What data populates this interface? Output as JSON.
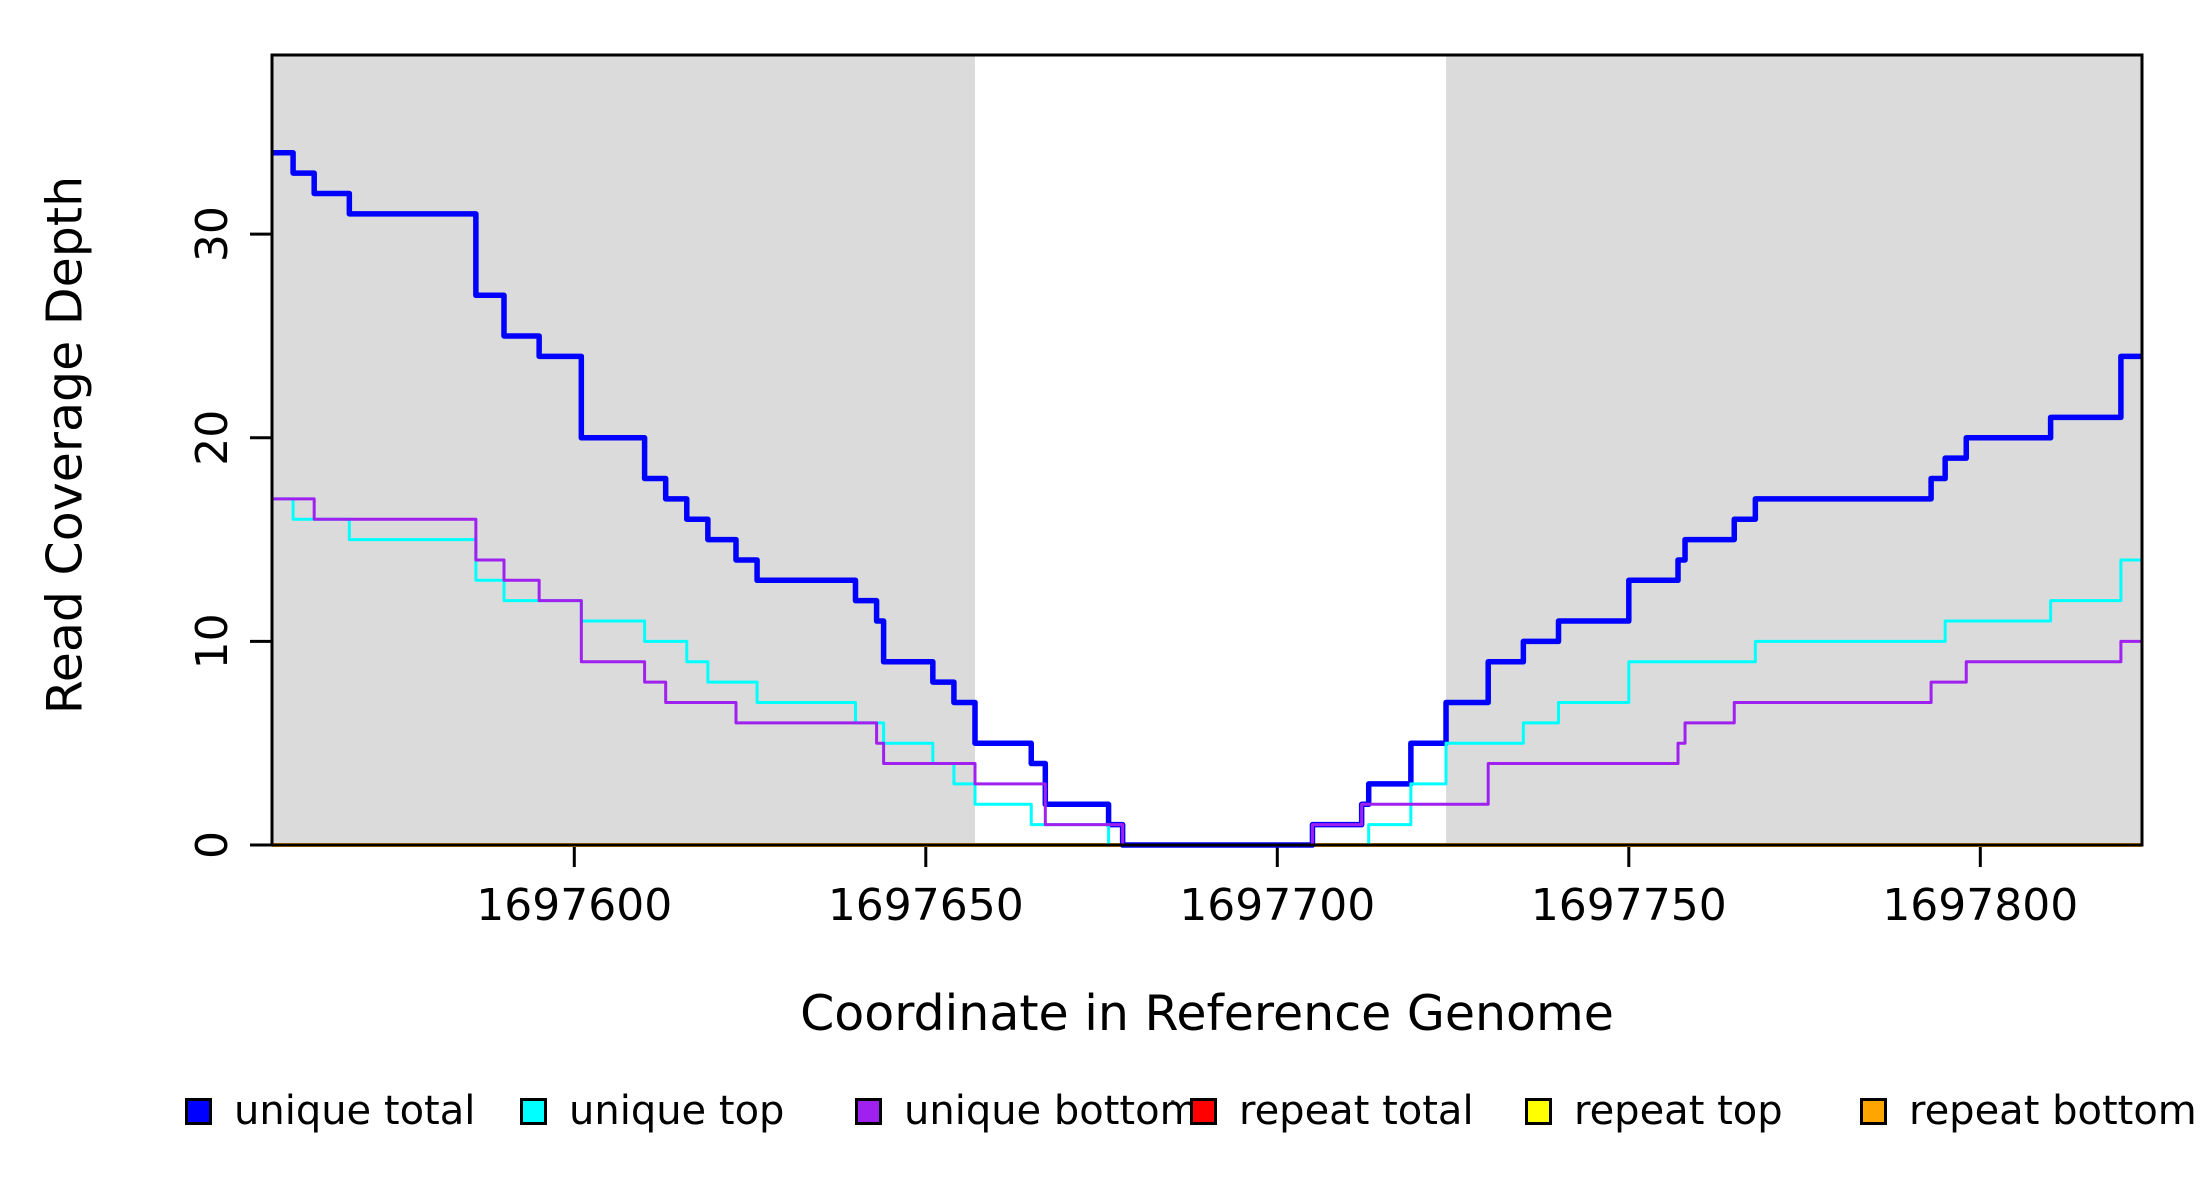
{
  "axes": {
    "y_label": "Read Coverage Depth",
    "x_label": "Coordinate in Reference Genome"
  },
  "legend": {
    "stray_mark": ".",
    "items": [
      {
        "label": "unique total",
        "color": "#0000FF"
      },
      {
        "label": "unique top",
        "color": "#00FFFF"
      },
      {
        "label": "unique bottom",
        "color": "#A020F0"
      },
      {
        "label": "repeat total",
        "color": "#FF0000"
      },
      {
        "label": "repeat top",
        "color": "#FFFF00"
      },
      {
        "label": "repeat bottom",
        "color": "#FFA500"
      }
    ]
  },
  "chart_data": {
    "type": "line",
    "subtype": "step",
    "title": "",
    "xlabel": "Coordinate in Reference Genome",
    "ylabel": "Read Coverage Depth",
    "x_domain": [
      1697557,
      1697823
    ],
    "y_domain": [
      0,
      38.8
    ],
    "x_ticks": [
      1697600,
      1697650,
      1697700,
      1697750,
      1697800
    ],
    "y_ticks": [
      0,
      10,
      20,
      30
    ],
    "grid": false,
    "legend_position": "bottom",
    "shade_color": "#DBDBDB",
    "shaded_regions": [
      {
        "from": 1697557,
        "to": 1697657
      },
      {
        "from": 1697724,
        "to": 1697823
      }
    ],
    "series": [
      {
        "name": "repeat total",
        "color": "#FF0000",
        "width": 3,
        "points": [
          [
            1697557,
            0
          ]
        ]
      },
      {
        "name": "repeat top",
        "color": "#FFFF00",
        "width": 3,
        "points": [
          [
            1697557,
            0
          ]
        ]
      },
      {
        "name": "repeat bottom",
        "color": "#FFA500",
        "width": 4,
        "points": [
          [
            1697557,
            0
          ]
        ]
      },
      {
        "name": "unique total",
        "color": "#0000FF",
        "width": 5.5,
        "points": [
          [
            1697557,
            34
          ],
          [
            1697560,
            33
          ],
          [
            1697563,
            32
          ],
          [
            1697568,
            31
          ],
          [
            1697586,
            27
          ],
          [
            1697590,
            25
          ],
          [
            1697595,
            24
          ],
          [
            1697601,
            20
          ],
          [
            1697610,
            18
          ],
          [
            1697613,
            17
          ],
          [
            1697616,
            16
          ],
          [
            1697619,
            15
          ],
          [
            1697623,
            14
          ],
          [
            1697626,
            13
          ],
          [
            1697640,
            12
          ],
          [
            1697643,
            11
          ],
          [
            1697644,
            9
          ],
          [
            1697651,
            8
          ],
          [
            1697654,
            7
          ],
          [
            1697657,
            5
          ],
          [
            1697665,
            4
          ],
          [
            1697667,
            2
          ],
          [
            1697676,
            1
          ],
          [
            1697678,
            0
          ],
          [
            1697705,
            1
          ],
          [
            1697712,
            2
          ],
          [
            1697713,
            3
          ],
          [
            1697719,
            5
          ],
          [
            1697724,
            7
          ],
          [
            1697730,
            9
          ],
          [
            1697735,
            10
          ],
          [
            1697740,
            11
          ],
          [
            1697750,
            13
          ],
          [
            1697757,
            14
          ],
          [
            1697758,
            15
          ],
          [
            1697765,
            16
          ],
          [
            1697768,
            17
          ],
          [
            1697793,
            18
          ],
          [
            1697795,
            19
          ],
          [
            1697798,
            20
          ],
          [
            1697810,
            21
          ],
          [
            1697820,
            24
          ]
        ]
      },
      {
        "name": "unique top",
        "color": "#00FFFF",
        "width": 3,
        "points": [
          [
            1697557,
            17
          ],
          [
            1697560,
            16
          ],
          [
            1697568,
            15
          ],
          [
            1697586,
            13
          ],
          [
            1697590,
            12
          ],
          [
            1697601,
            11
          ],
          [
            1697610,
            10
          ],
          [
            1697616,
            9
          ],
          [
            1697619,
            8
          ],
          [
            1697626,
            7
          ],
          [
            1697640,
            6
          ],
          [
            1697644,
            5
          ],
          [
            1697651,
            4
          ],
          [
            1697654,
            3
          ],
          [
            1697657,
            2
          ],
          [
            1697665,
            1
          ],
          [
            1697676,
            0
          ],
          [
            1697713,
            1
          ],
          [
            1697719,
            3
          ],
          [
            1697724,
            5
          ],
          [
            1697735,
            6
          ],
          [
            1697740,
            7
          ],
          [
            1697750,
            9
          ],
          [
            1697768,
            10
          ],
          [
            1697795,
            11
          ],
          [
            1697810,
            12
          ],
          [
            1697820,
            14
          ]
        ]
      },
      {
        "name": "unique bottom",
        "color": "#A020F0",
        "width": 3,
        "points": [
          [
            1697557,
            17
          ],
          [
            1697563,
            16
          ],
          [
            1697586,
            14
          ],
          [
            1697590,
            13
          ],
          [
            1697595,
            12
          ],
          [
            1697601,
            9
          ],
          [
            1697610,
            8
          ],
          [
            1697613,
            7
          ],
          [
            1697623,
            6
          ],
          [
            1697643,
            5
          ],
          [
            1697644,
            4
          ],
          [
            1697657,
            3
          ],
          [
            1697667,
            1
          ],
          [
            1697678,
            0
          ],
          [
            1697705,
            1
          ],
          [
            1697712,
            2
          ],
          [
            1697730,
            4
          ],
          [
            1697757,
            5
          ],
          [
            1697758,
            6
          ],
          [
            1697765,
            7
          ],
          [
            1697793,
            8
          ],
          [
            1697798,
            9
          ],
          [
            1697820,
            10
          ]
        ]
      }
    ]
  }
}
